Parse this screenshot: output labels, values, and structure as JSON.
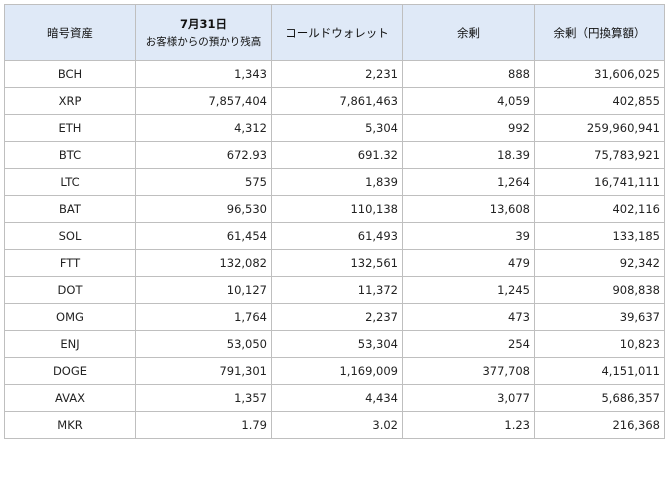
{
  "table": {
    "headers": {
      "asset": "暗号資産",
      "customer_line1": "7月31日",
      "customer_line2": "お客様からの預かり残高",
      "cold_wallet": "コールドウォレット",
      "surplus": "余剰",
      "surplus_jpy": "余剰（円換算額）"
    },
    "rows": [
      {
        "symbol": "BCH",
        "customer": "1,343",
        "cold": "2,231",
        "surplus": "888",
        "jpy": "31,606,025"
      },
      {
        "symbol": "XRP",
        "customer": "7,857,404",
        "cold": "7,861,463",
        "surplus": "4,059",
        "jpy": "402,855"
      },
      {
        "symbol": "ETH",
        "customer": "4,312",
        "cold": "5,304",
        "surplus": "992",
        "jpy": "259,960,941"
      },
      {
        "symbol": "BTC",
        "customer": "672.93",
        "cold": "691.32",
        "surplus": "18.39",
        "jpy": "75,783,921"
      },
      {
        "symbol": "LTC",
        "customer": "575",
        "cold": "1,839",
        "surplus": "1,264",
        "jpy": "16,741,111"
      },
      {
        "symbol": "BAT",
        "customer": "96,530",
        "cold": "110,138",
        "surplus": "13,608",
        "jpy": "402,116"
      },
      {
        "symbol": "SOL",
        "customer": "61,454",
        "cold": "61,493",
        "surplus": "39",
        "jpy": "133,185"
      },
      {
        "symbol": "FTT",
        "customer": "132,082",
        "cold": "132,561",
        "surplus": "479",
        "jpy": "92,342"
      },
      {
        "symbol": "DOT",
        "customer": "10,127",
        "cold": "11,372",
        "surplus": "1,245",
        "jpy": "908,838"
      },
      {
        "symbol": "OMG",
        "customer": "1,764",
        "cold": "2,237",
        "surplus": "473",
        "jpy": "39,637"
      },
      {
        "symbol": "ENJ",
        "customer": "53,050",
        "cold": "53,304",
        "surplus": "254",
        "jpy": "10,823"
      },
      {
        "symbol": "DOGE",
        "customer": "791,301",
        "cold": "1,169,009",
        "surplus": "377,708",
        "jpy": "4,151,011"
      },
      {
        "symbol": "AVAX",
        "customer": "1,357",
        "cold": "4,434",
        "surplus": "3,077",
        "jpy": "5,686,357"
      },
      {
        "symbol": "MKR",
        "customer": "1.79",
        "cold": "3.02",
        "surplus": "1.23",
        "jpy": "216,368"
      }
    ]
  }
}
